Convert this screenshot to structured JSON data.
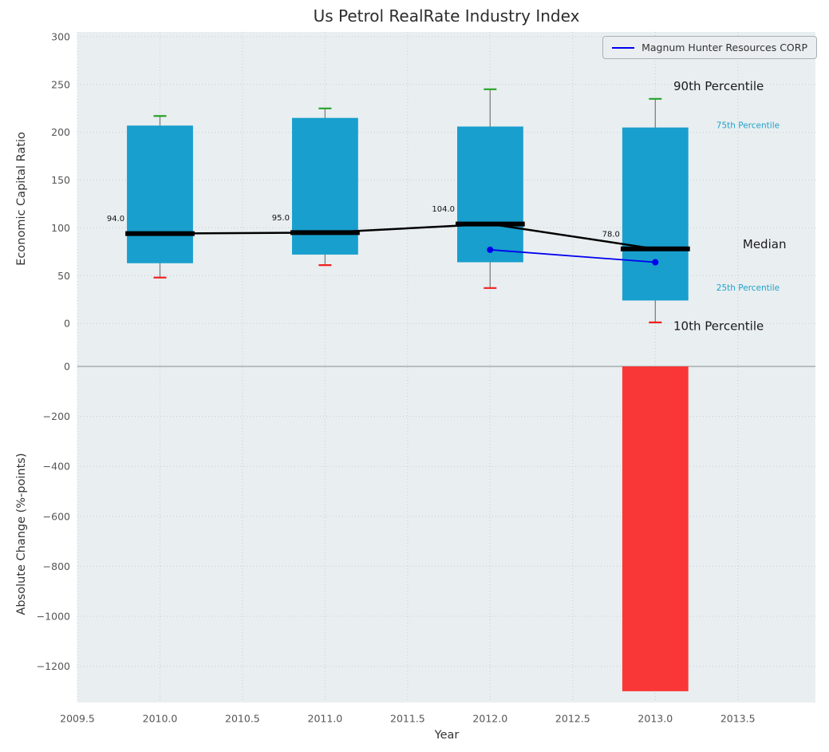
{
  "chart_data": {
    "type": "boxplot+bar",
    "title": "Us Petrol RealRate Industry Index",
    "xlabel": "Year",
    "xlim": [
      2009.5,
      2013.97
    ],
    "xticks": [
      2009.5,
      2010.0,
      2010.5,
      2011.0,
      2011.5,
      2012.0,
      2012.5,
      2013.0,
      2013.5
    ],
    "top_panel": {
      "ylabel": "Economic Capital Ratio",
      "ylim": [
        -45,
        305
      ],
      "yticks": [
        0,
        50,
        100,
        150,
        200,
        250,
        300
      ],
      "years": [
        2010,
        2011,
        2012,
        2013
      ],
      "box_width": 0.4,
      "p10": [
        48,
        61,
        37,
        1
      ],
      "p25": [
        63,
        72,
        64,
        24
      ],
      "median": [
        94,
        95,
        104,
        78
      ],
      "p75": [
        207,
        215,
        206,
        205
      ],
      "p90": [
        217,
        225,
        245,
        235
      ],
      "median_labels": [
        "94.0",
        "95.0",
        "104.0",
        "78.0"
      ],
      "company_series": {
        "name": "Magnum Hunter Resources CORP",
        "x": [
          2012,
          2013
        ],
        "y": [
          77,
          64
        ]
      },
      "annotations": [
        {
          "text": "90th Percentile",
          "x": 2013.11,
          "y": 248,
          "fontsize": 15,
          "color": "#1a1a1a"
        },
        {
          "text": "75th Percentile",
          "x": 2013.37,
          "y": 207,
          "fontsize": 10.5,
          "color": "#1fa3c9"
        },
        {
          "text": "Median",
          "x": 2013.53,
          "y": 83,
          "fontsize": 15,
          "color": "#1a1a1a"
        },
        {
          "text": "25th Percentile",
          "x": 2013.37,
          "y": 37,
          "fontsize": 10.5,
          "color": "#1fa3c9"
        },
        {
          "text": "10th Percentile",
          "x": 2013.11,
          "y": -3,
          "fontsize": 15,
          "color": "#1a1a1a"
        }
      ]
    },
    "bottom_panel": {
      "ylabel": "Absolute Change (%-points)",
      "ylim": [
        -1345,
        0
      ],
      "yticks": [
        0,
        -200,
        -400,
        -600,
        -800,
        -1000,
        -1200
      ],
      "bars": [
        {
          "x": 2013,
          "value": -1300
        }
      ]
    },
    "colors": {
      "box_fill": "#189fcd",
      "negative_bar": "#fa3737",
      "median_line": "#000000",
      "whisker": "#7f7f7f",
      "cap_high": "#25a325",
      "cap_low": "#f02020",
      "company_line": "#0000ee",
      "axes_background": "#e9eef1",
      "grid": "#c6cfd4",
      "zero_line": "#9aa0a4",
      "tick_label": "#555555",
      "axis_label": "#333333",
      "title": "#2d2d2d"
    }
  }
}
